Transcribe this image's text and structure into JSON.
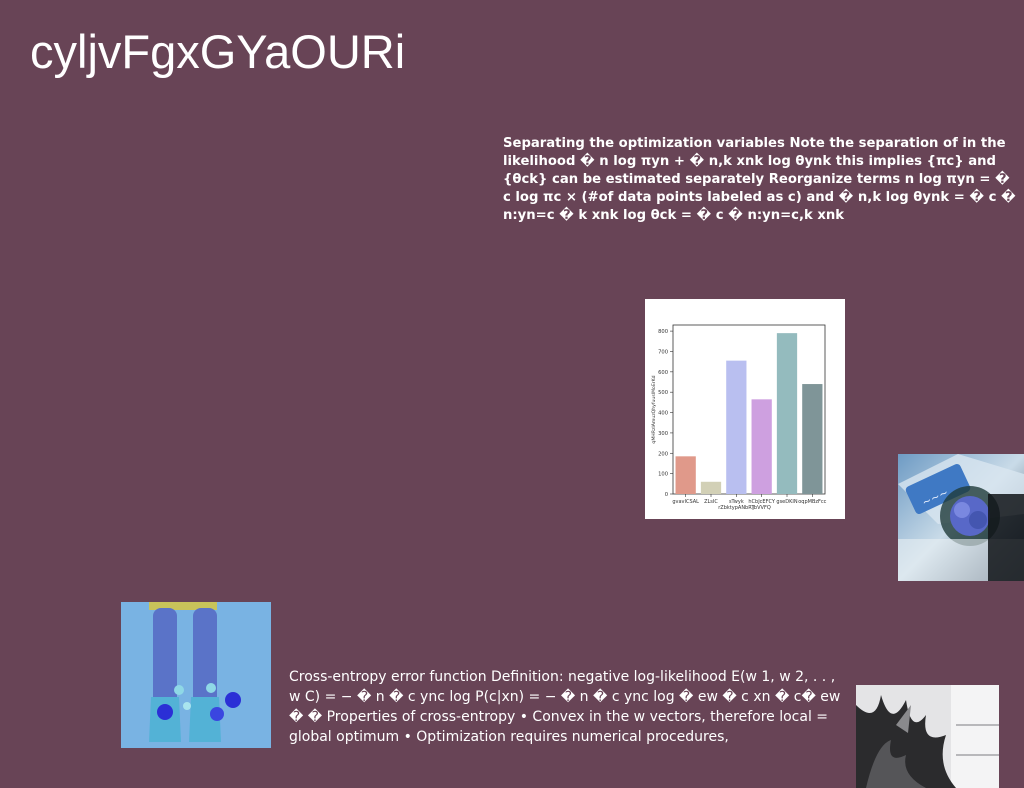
{
  "title": "cyljvFgxGYaOURi",
  "text_top": "Separating the optimization variables Note the separation of in the likelihood � n log πyn + � n,k xnk log θynk this implies {πc} and {θck} can be estimated separately Reorganize terms n log πyn = � c log πc × (#of data points labeled as c) and � n,k log θynk = � c � n:yn=c � k xnk log θck = � c � n:yn=c,k xnk",
  "text_bottom": "Cross-entropy error function Definition: negative log-likelihood E(w 1, w 2, . . , w C) = − � n � c ync log P(c|xn) = − � n � c ync log � ew � c xn � c� ew � � Properties of cross-entropy • Convex in the w vectors, therefore local = global optimum • Optimization requires numerical procedures,",
  "colors": {
    "background": "#684456",
    "text": "#ffffff"
  },
  "chart_data": {
    "type": "bar",
    "categories": [
      "gvavICSAL",
      "ZLsIC",
      "sTwyk\nrZbktypANbRT",
      "hCbJcEFCY\njbVVFQ",
      "gseDKIN",
      "oqpMBzFcc"
    ],
    "tick_lines": [
      [
        "gvavICSAL"
      ],
      [
        "ZLsIC"
      ],
      [
        "sTwyk",
        "rZbktypANbRT"
      ],
      [
        "hCbJcEFCY",
        "jbVVFQ"
      ],
      [
        "gseDKIN"
      ],
      [
        "oqpMBzFcc"
      ]
    ],
    "values": [
      185,
      60,
      655,
      465,
      790,
      540
    ],
    "colors": [
      "#e0998a",
      "#d2d0b6",
      "#b9bff0",
      "#cea0e0",
      "#94bbbe",
      "#7f9598"
    ],
    "ylim": [
      0,
      830
    ],
    "yticks": [
      0,
      100,
      200,
      300,
      400,
      500,
      600,
      700,
      800
    ],
    "xlabel": "",
    "ylabel": "qMHRzIAmuzQhyfuusIMoErKd",
    "grid": false
  },
  "images": {
    "right": "blue-flowers-tray-photo",
    "legs": "legs-blue-flowers-photo",
    "plant": "grayscale-plant-photo"
  }
}
